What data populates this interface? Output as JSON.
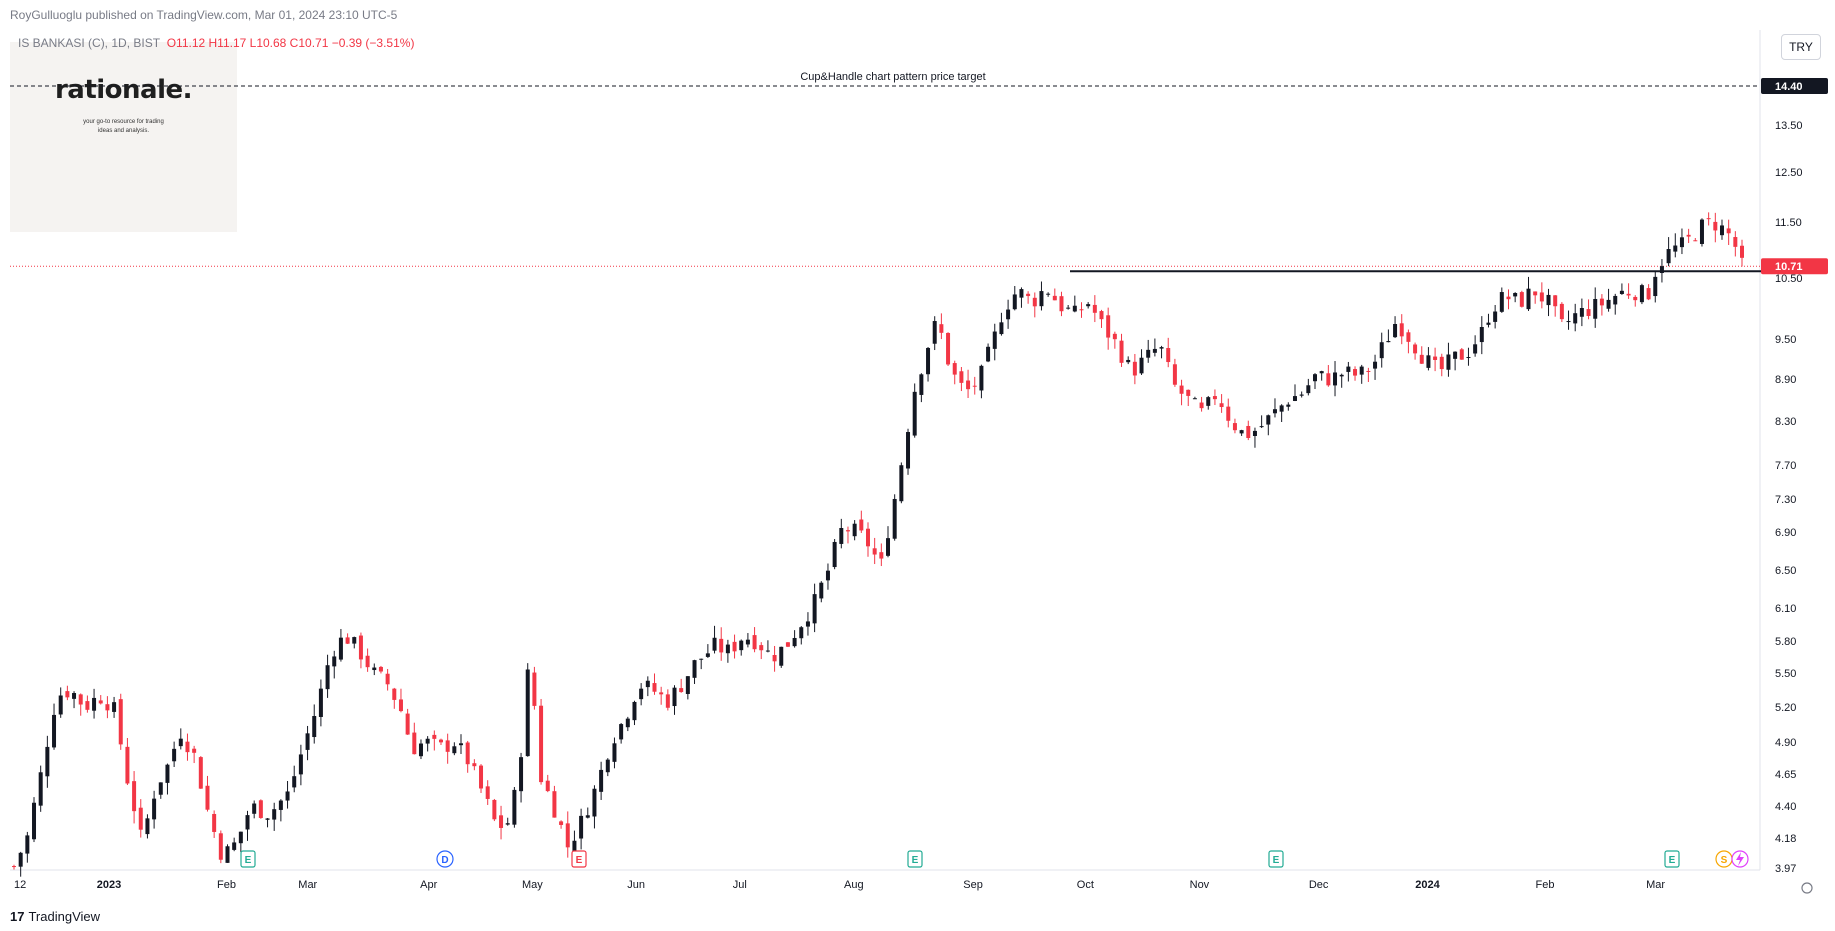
{
  "header": {
    "published": "RoyGulluoglu published on TradingView.com, Mar 01, 2024 23:10 UTC-5",
    "symbol": "IS BANKASI (C), 1D, BIST",
    "ohlc": "O11.12  H11.17  L10.68  C10.71  −0.39 (−3.51%)",
    "currency": "TRY"
  },
  "watermark": {
    "title": "rationale.",
    "subtitle_line1": "your go-to resource for trading",
    "subtitle_line2": "ideas and analysis."
  },
  "footer": {
    "brand": "TradingView",
    "brand_mark": "17"
  },
  "chart_data": {
    "type": "candlestick",
    "price_scale": {
      "labels": [
        "14.40",
        "13.50",
        "12.50",
        "11.50",
        "10.50",
        "9.50",
        "8.90",
        "8.30",
        "7.70",
        "7.30",
        "6.90",
        "6.50",
        "6.10",
        "5.80",
        "5.50",
        "5.20",
        "4.90",
        "4.65",
        "4.40",
        "4.18",
        "3.97"
      ],
      "last_price": 10.71,
      "last_price_label": "10.71",
      "target_label": "14.40"
    },
    "time_labels": [
      "12",
      "2023",
      "Feb",
      "Mar",
      "Apr",
      "May",
      "Jun",
      "Jul",
      "Aug",
      "Sep",
      "Oct",
      "Nov",
      "Dec",
      "2024",
      "Feb",
      "Mar"
    ],
    "annotations": {
      "target_text": "Cup&Handle chart pattern price target",
      "target_price": 14.4,
      "resistance_price": 10.62,
      "resistance_start_month": "Sep 2023",
      "resistance_end": "Mar 2024"
    },
    "event_markers": [
      "E",
      "D",
      "E",
      "E",
      "E",
      "E",
      "S"
    ],
    "colors": {
      "up": "#131722",
      "down": "#f23645",
      "target_line": "#131722",
      "last_price_line": "#f23645"
    },
    "candle_anchors": [
      {
        "t": 0,
        "p": 3.98
      },
      {
        "t": 3,
        "p": 4.2
      },
      {
        "t": 6,
        "p": 4.7
      },
      {
        "t": 9,
        "p": 5.3
      },
      {
        "t": 12,
        "p": 5.35
      },
      {
        "t": 15,
        "p": 5.2
      },
      {
        "t": 18,
        "p": 5.3
      },
      {
        "t": 21,
        "p": 5.2
      },
      {
        "t": 24,
        "p": 4.6
      },
      {
        "t": 27,
        "p": 4.15
      },
      {
        "t": 30,
        "p": 4.55
      },
      {
        "t": 33,
        "p": 4.75
      },
      {
        "t": 35,
        "p": 5.0
      },
      {
        "t": 38,
        "p": 4.8
      },
      {
        "t": 41,
        "p": 4.35
      },
      {
        "t": 44,
        "p": 4.05
      },
      {
        "t": 47,
        "p": 4.15
      },
      {
        "t": 50,
        "p": 4.4
      },
      {
        "t": 54,
        "p": 4.35
      },
      {
        "t": 58,
        "p": 4.5
      },
      {
        "t": 61,
        "p": 4.85
      },
      {
        "t": 64,
        "p": 5.2
      },
      {
        "t": 67,
        "p": 5.7
      },
      {
        "t": 70,
        "p": 5.85
      },
      {
        "t": 73,
        "p": 5.7
      },
      {
        "t": 76,
        "p": 5.5
      },
      {
        "t": 79,
        "p": 5.4
      },
      {
        "t": 82,
        "p": 5.15
      },
      {
        "t": 84,
        "p": 4.85
      },
      {
        "t": 87,
        "p": 4.9
      },
      {
        "t": 90,
        "p": 4.85
      },
      {
        "t": 93,
        "p": 4.9
      },
      {
        "t": 96,
        "p": 4.75
      },
      {
        "t": 99,
        "p": 4.5
      },
      {
        "t": 102,
        "p": 4.25
      },
      {
        "t": 105,
        "p": 4.3
      },
      {
        "t": 107,
        "p": 4.8
      },
      {
        "t": 109,
        "p": 5.7
      },
      {
        "t": 111,
        "p": 4.65
      },
      {
        "t": 114,
        "p": 4.4
      },
      {
        "t": 117,
        "p": 4.12
      },
      {
        "t": 120,
        "p": 4.3
      },
      {
        "t": 123,
        "p": 4.55
      },
      {
        "t": 126,
        "p": 4.9
      },
      {
        "t": 129,
        "p": 5.1
      },
      {
        "t": 132,
        "p": 5.4
      },
      {
        "t": 135,
        "p": 5.35
      },
      {
        "t": 138,
        "p": 5.25
      },
      {
        "t": 141,
        "p": 5.4
      },
      {
        "t": 144,
        "p": 5.6
      },
      {
        "t": 148,
        "p": 5.75
      },
      {
        "t": 151,
        "p": 5.7
      },
      {
        "t": 154,
        "p": 5.85
      },
      {
        "t": 157,
        "p": 5.8
      },
      {
        "t": 160,
        "p": 5.65
      },
      {
        "t": 163,
        "p": 5.75
      },
      {
        "t": 166,
        "p": 5.95
      },
      {
        "t": 169,
        "p": 6.15
      },
      {
        "t": 172,
        "p": 6.5
      },
      {
        "t": 175,
        "p": 6.95
      },
      {
        "t": 178,
        "p": 6.9
      },
      {
        "t": 181,
        "p": 6.75
      },
      {
        "t": 183,
        "p": 6.5
      },
      {
        "t": 186,
        "p": 7.3
      },
      {
        "t": 188,
        "p": 7.9
      },
      {
        "t": 190,
        "p": 8.7
      },
      {
        "t": 193,
        "p": 9.4
      },
      {
        "t": 195,
        "p": 9.8
      },
      {
        "t": 198,
        "p": 9.0
      },
      {
        "t": 201,
        "p": 8.7
      },
      {
        "t": 204,
        "p": 8.9
      },
      {
        "t": 207,
        "p": 9.5
      },
      {
        "t": 209,
        "p": 10.0
      },
      {
        "t": 212,
        "p": 10.3
      },
      {
        "t": 215,
        "p": 10.1
      },
      {
        "t": 218,
        "p": 10.35
      },
      {
        "t": 221,
        "p": 10.05
      },
      {
        "t": 224,
        "p": 9.9
      },
      {
        "t": 227,
        "p": 10.1
      },
      {
        "t": 230,
        "p": 9.7
      },
      {
        "t": 233,
        "p": 9.4
      },
      {
        "t": 236,
        "p": 9.0
      },
      {
        "t": 239,
        "p": 9.2
      },
      {
        "t": 242,
        "p": 9.4
      },
      {
        "t": 245,
        "p": 8.8
      },
      {
        "t": 248,
        "p": 8.6
      },
      {
        "t": 251,
        "p": 8.4
      },
      {
        "t": 254,
        "p": 8.7
      },
      {
        "t": 257,
        "p": 8.3
      },
      {
        "t": 260,
        "p": 8.1
      },
      {
        "t": 263,
        "p": 8.2
      },
      {
        "t": 266,
        "p": 8.4
      },
      {
        "t": 269,
        "p": 8.6
      },
      {
        "t": 272,
        "p": 8.7
      },
      {
        "t": 275,
        "p": 8.95
      },
      {
        "t": 278,
        "p": 8.9
      },
      {
        "t": 281,
        "p": 9.0
      },
      {
        "t": 284,
        "p": 8.95
      },
      {
        "t": 287,
        "p": 9.1
      },
      {
        "t": 290,
        "p": 9.5
      },
      {
        "t": 292,
        "p": 9.8
      },
      {
        "t": 295,
        "p": 9.5
      },
      {
        "t": 298,
        "p": 9.2
      },
      {
        "t": 301,
        "p": 9.0
      },
      {
        "t": 304,
        "p": 9.2
      },
      {
        "t": 307,
        "p": 9.3
      },
      {
        "t": 310,
        "p": 9.6
      },
      {
        "t": 312,
        "p": 10.0
      },
      {
        "t": 315,
        "p": 10.2
      },
      {
        "t": 318,
        "p": 10.1
      },
      {
        "t": 321,
        "p": 10.3
      },
      {
        "t": 324,
        "p": 10.1
      },
      {
        "t": 327,
        "p": 9.7
      },
      {
        "t": 330,
        "p": 9.9
      },
      {
        "t": 333,
        "p": 10.0
      },
      {
        "t": 336,
        "p": 10.1
      },
      {
        "t": 339,
        "p": 10.25
      },
      {
        "t": 342,
        "p": 10.3
      },
      {
        "t": 345,
        "p": 10.2
      },
      {
        "t": 347,
        "p": 10.7
      },
      {
        "t": 350,
        "p": 11.0
      },
      {
        "t": 353,
        "p": 11.1
      },
      {
        "t": 356,
        "p": 11.4
      },
      {
        "t": 359,
        "p": 11.5
      },
      {
        "t": 362,
        "p": 11.3
      },
      {
        "t": 364,
        "p": 11.0
      },
      {
        "t": 365,
        "p": 10.71
      }
    ]
  }
}
